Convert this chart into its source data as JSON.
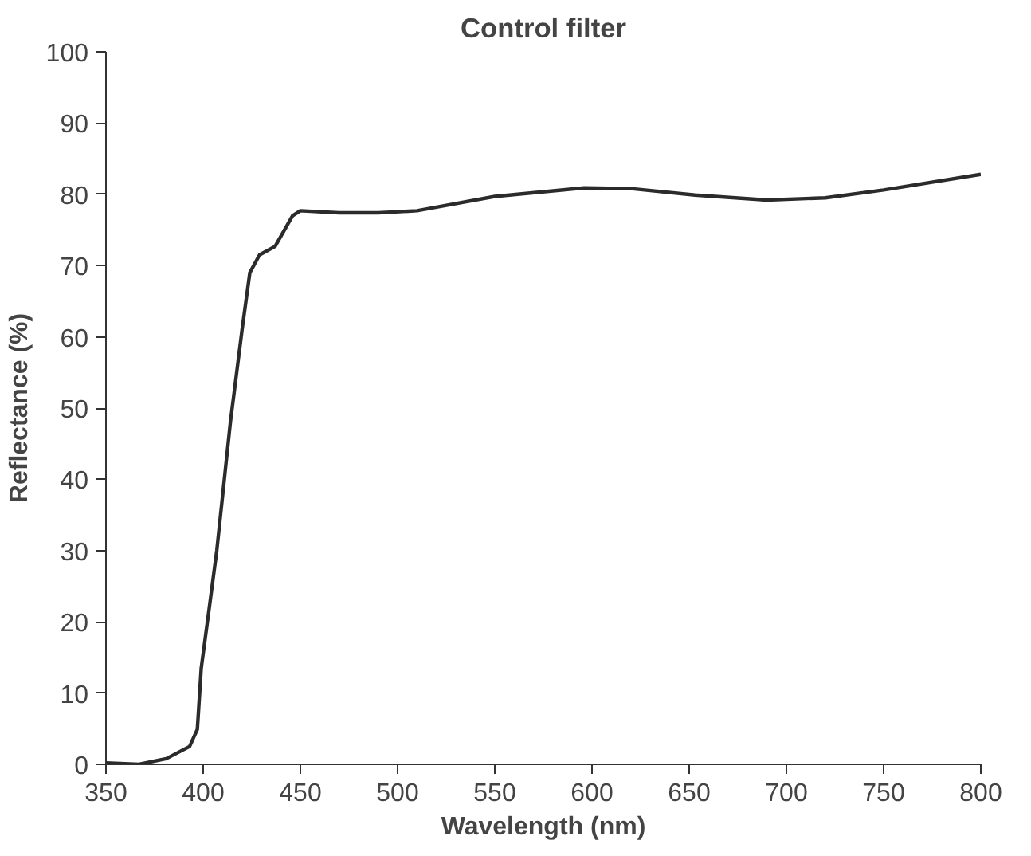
{
  "chart_data": {
    "type": "line",
    "title": "Control filter",
    "xlabel": "Wavelength (nm)",
    "ylabel": "Reflectance (%)",
    "x": [
      350,
      367,
      381,
      393,
      397,
      399,
      403,
      407,
      414,
      420,
      424,
      429,
      437,
      446,
      450,
      470,
      490,
      510,
      550,
      596,
      620,
      653,
      690,
      720,
      750,
      800
    ],
    "series": [
      {
        "color": "#2b2b2b",
        "values": [
          0.2,
          0,
          0.8,
          2.5,
          4.9,
          13.5,
          21.7,
          30,
          48,
          61,
          69,
          71.5,
          72.7,
          77,
          77.7,
          77.4,
          77.4,
          77.7,
          79.7,
          80.9,
          80.8,
          79.9,
          79.2,
          79.5,
          80.6,
          82.8
        ]
      }
    ],
    "xlim": [
      350,
      800
    ],
    "xticks": [
      350,
      400,
      450,
      500,
      550,
      600,
      650,
      700,
      750,
      800
    ],
    "ylim": [
      0,
      100
    ],
    "yticks": [
      0,
      10,
      20,
      30,
      40,
      50,
      60,
      70,
      80,
      90,
      100
    ],
    "grid": false,
    "marker": "none",
    "line_style": "solid"
  }
}
